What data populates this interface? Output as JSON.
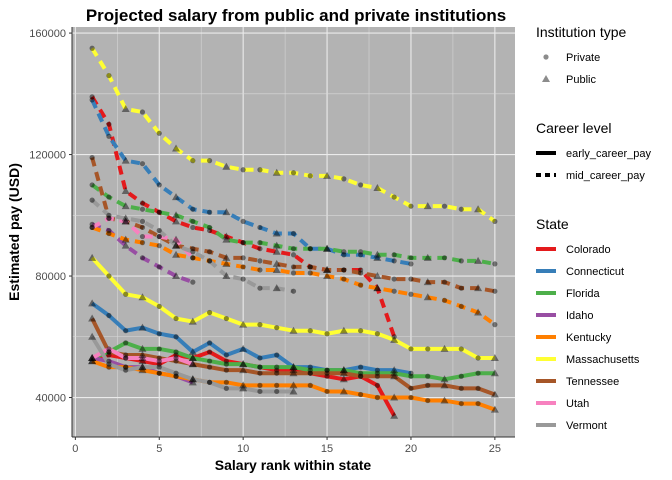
{
  "chart_data": {
    "type": "line",
    "title": "Projected salary from public and private institutions",
    "xlabel": "Salary rank within state",
    "ylabel": "Estimated pay (USD)",
    "xlim": [
      -0.2,
      26.2
    ],
    "ylim": [
      27000,
      162000
    ],
    "x_ticks": [
      0,
      5,
      10,
      15,
      20,
      25
    ],
    "y_ticks": [
      40000,
      80000,
      120000,
      160000
    ],
    "y_tick_labels": [
      "40000",
      "80000",
      "120000",
      "160000"
    ],
    "grid": true,
    "panel_background": "#b3b3b3",
    "legend": {
      "placement": "right",
      "groups": [
        {
          "title": "Institution type",
          "entries": [
            {
              "label": "Private",
              "shape": "circle"
            },
            {
              "label": "Public",
              "shape": "triangle"
            }
          ]
        },
        {
          "title": "Career level",
          "entries": [
            {
              "label": "early_career_pay",
              "linetype": "solid"
            },
            {
              "label": "mid_career_pay",
              "linetype": "dashed"
            }
          ]
        },
        {
          "title": "State",
          "entries": [
            {
              "label": "Colorado",
              "color": "#e41a1c"
            },
            {
              "label": "Connecticut",
              "color": "#377eb8"
            },
            {
              "label": "Florida",
              "color": "#4daf4a"
            },
            {
              "label": "Idaho",
              "color": "#984ea3"
            },
            {
              "label": "Kentucky",
              "color": "#ff7f00"
            },
            {
              "label": "Massachusetts",
              "color": "#ffff33"
            },
            {
              "label": "Tennessee",
              "color": "#a65628"
            },
            {
              "label": "Utah",
              "color": "#f781bf"
            },
            {
              "label": "Vermont",
              "color": "#999999"
            }
          ]
        }
      ]
    },
    "series": [
      {
        "name": "Colorado",
        "color": "#e41a1c",
        "early": [
          52000,
          54000,
          53000,
          52000,
          51000,
          54000,
          53000,
          55000,
          52000,
          51000,
          50000,
          49000,
          49000,
          48000,
          47000,
          46000,
          47000,
          44000,
          34000
        ],
        "mid": [
          139000,
          130000,
          108000,
          104000,
          101000,
          98000,
          96000,
          95000,
          93000,
          91000,
          89000,
          88000,
          87000,
          83000,
          82000,
          82000,
          82000,
          76000,
          60000
        ]
      },
      {
        "name": "Connecticut",
        "color": "#377eb8",
        "early": [
          71000,
          67000,
          62000,
          63000,
          61000,
          60000,
          55000,
          58000,
          54000,
          56000,
          53000,
          54000,
          50000,
          50000,
          49000,
          49000,
          50000,
          49000,
          49000,
          48000
        ],
        "mid": [
          138000,
          126000,
          118000,
          117000,
          110000,
          106000,
          102000,
          101000,
          101000,
          98000,
          96000,
          94000,
          94000,
          89000,
          89000,
          87000,
          87000,
          86000,
          85000,
          84000
        ]
      },
      {
        "name": "Florida",
        "color": "#4daf4a",
        "early": [
          53000,
          55000,
          58000,
          56000,
          56000,
          55000,
          53000,
          52000,
          51000,
          51000,
          50000,
          50000,
          50000,
          49000,
          49000,
          49000,
          48000,
          48000,
          48000,
          47000,
          47000,
          46000,
          47000,
          48000,
          48000
        ],
        "mid": [
          110000,
          106000,
          103000,
          102000,
          101000,
          100000,
          98000,
          96000,
          92000,
          91000,
          91000,
          90000,
          89000,
          89000,
          89000,
          88000,
          88000,
          87000,
          87000,
          86000,
          86000,
          86000,
          85000,
          85000,
          84000
        ]
      },
      {
        "name": "Idaho",
        "color": "#984ea3",
        "early": [
          53000,
          52000,
          50000,
          50000,
          48000,
          47000,
          45000
        ],
        "mid": [
          97000,
          95000,
          90000,
          86000,
          83000,
          80000,
          78000
        ]
      },
      {
        "name": "Kentucky",
        "color": "#ff7f00",
        "early": [
          52000,
          50000,
          50000,
          49000,
          48000,
          47000,
          46000,
          45000,
          45000,
          44000,
          44000,
          44000,
          44000,
          44000,
          42000,
          42000,
          41000,
          40000,
          40000,
          40000,
          39000,
          39000,
          38000,
          38000,
          36000
        ],
        "mid": [
          96000,
          94000,
          92000,
          91000,
          90000,
          87000,
          86000,
          85000,
          84000,
          83000,
          82000,
          82000,
          81000,
          81000,
          80000,
          79000,
          77000,
          76000,
          75000,
          74000,
          73000,
          72000,
          70000,
          68000,
          64000
        ]
      },
      {
        "name": "Massachusetts",
        "color": "#ffff33",
        "early": [
          86000,
          80000,
          74000,
          73000,
          70000,
          66000,
          65000,
          68000,
          66000,
          64000,
          64000,
          63000,
          62000,
          62000,
          61000,
          62000,
          62000,
          61000,
          59000,
          56000,
          56000,
          56000,
          56000,
          53000,
          53000
        ],
        "mid": [
          155000,
          146000,
          135000,
          134000,
          127000,
          122000,
          118000,
          118000,
          116000,
          115000,
          115000,
          114000,
          114000,
          113000,
          113000,
          112000,
          110000,
          109000,
          106000,
          103000,
          103000,
          103000,
          102000,
          102000,
          98000
        ]
      },
      {
        "name": "Tennessee",
        "color": "#a65628",
        "early": [
          66000,
          55000,
          54000,
          54000,
          53000,
          52000,
          51000,
          50000,
          49000,
          49000,
          48000,
          48000,
          48000,
          48000,
          48000,
          48000,
          47000,
          47000,
          47000,
          43000,
          44000,
          44000,
          43000,
          43000,
          41000
        ],
        "mid": [
          119000,
          99000,
          98000,
          96000,
          93000,
          90000,
          89000,
          88000,
          86000,
          86000,
          85000,
          84000,
          83000,
          83000,
          82000,
          82000,
          81000,
          80000,
          79000,
          79000,
          78000,
          78000,
          76000,
          76000,
          75000
        ]
      },
      {
        "name": "Utah",
        "color": "#f781bf",
        "early": [
          53000,
          56000,
          53000,
          53000,
          52000,
          53000,
          51000
        ],
        "mid": [
          96000,
          99000,
          98000,
          93000,
          93000,
          92000,
          86000
        ]
      },
      {
        "name": "Vermont",
        "color": "#999999",
        "early": [
          60000,
          51000,
          49000,
          50000,
          50000,
          48000,
          46000,
          45000,
          43000,
          43000,
          42000,
          42000,
          42000
        ],
        "mid": [
          105000,
          100000,
          99000,
          98000,
          95000,
          90000,
          88000,
          85000,
          80000,
          79000,
          76000,
          76000,
          75000
        ]
      }
    ]
  }
}
